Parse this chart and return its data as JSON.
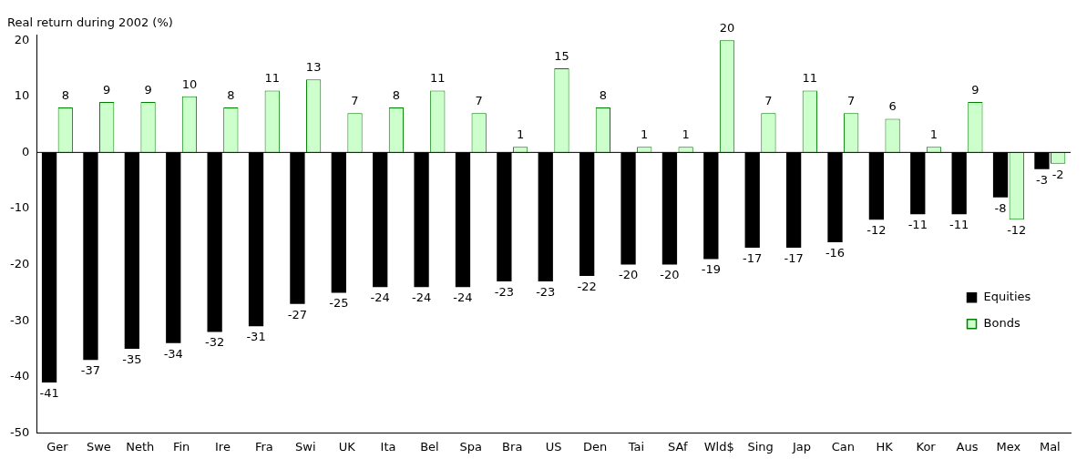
{
  "chart_data": {
    "type": "bar",
    "ylabel": "Real return during 2002 (%)",
    "categories": [
      "Ger",
      "Swe",
      "Neth",
      "Fin",
      "Ire",
      "Fra",
      "Swi",
      "UK",
      "Ita",
      "Bel",
      "Spa",
      "Bra",
      "US",
      "Den",
      "Tai",
      "SAf",
      "Wld$",
      "Sing",
      "Jap",
      "Can",
      "HK",
      "Kor",
      "Aus",
      "Mex",
      "Mal"
    ],
    "series": [
      {
        "name": "Equities",
        "color": "#000000",
        "values": [
          -41,
          -37,
          -35,
          -34,
          -32,
          -31,
          -27,
          -25,
          -24,
          -24,
          -24,
          -23,
          -23,
          -22,
          -20,
          -20,
          -19,
          -17,
          -17,
          -16,
          -12,
          -11,
          -11,
          -8,
          -3
        ]
      },
      {
        "name": "Bonds",
        "color": "#ccffcc",
        "values": [
          8,
          9,
          9,
          10,
          8,
          11,
          13,
          7,
          8,
          11,
          7,
          1,
          15,
          8,
          1,
          1,
          20,
          7,
          11,
          7,
          6,
          1,
          9,
          -12,
          -2
        ]
      }
    ],
    "ylim": [
      -50,
      21
    ],
    "yticks": [
      -50,
      -40,
      -30,
      -20,
      -10,
      0,
      10,
      20
    ],
    "ref_lines": [
      {
        "axis": "y",
        "value": 0,
        "color": "#000000"
      }
    ],
    "grid": false,
    "legend": "right",
    "data_labels": true
  }
}
